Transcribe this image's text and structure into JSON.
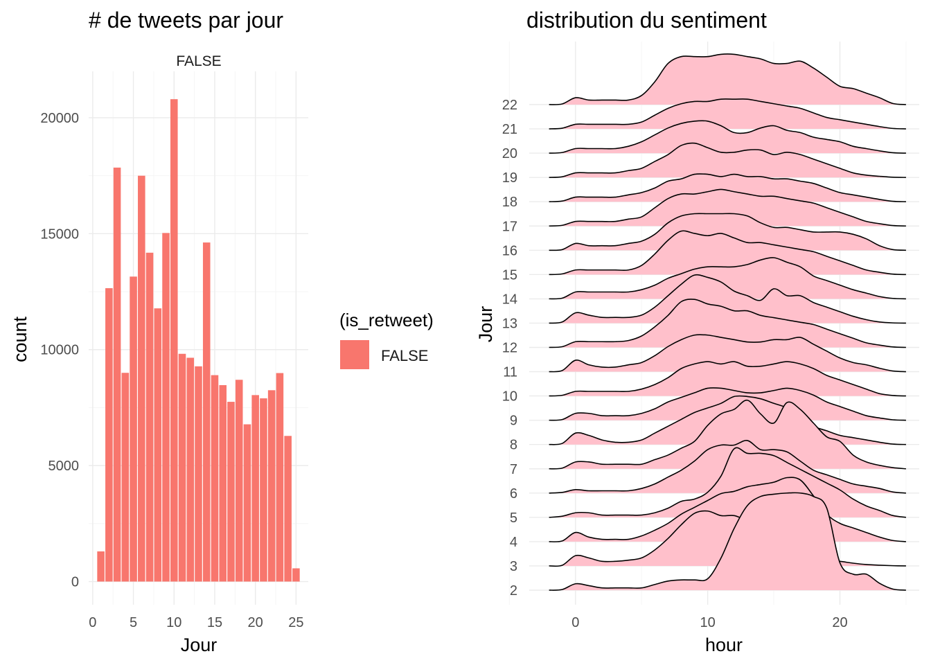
{
  "chart_data": [
    {
      "type": "bar",
      "title": "# de tweets par jour",
      "facet_label": "FALSE",
      "xlabel": "Jour",
      "ylabel": "count",
      "xlim": [
        -0.5,
        26.5
      ],
      "ylim": [
        -1000,
        22000
      ],
      "x_ticks": [
        0,
        5,
        10,
        15,
        20,
        25
      ],
      "y_ticks": [
        0,
        5000,
        10000,
        15000,
        20000
      ],
      "grid": true,
      "legend": {
        "title": "(is_retweet)",
        "position": "right",
        "entries": [
          {
            "label": "FALSE",
            "color": "#f8766d"
          }
        ]
      },
      "color": "#f8766d",
      "x": [
        1,
        2,
        3,
        4,
        5,
        6,
        7,
        8,
        9,
        10,
        11,
        12,
        13,
        14,
        15,
        16,
        17,
        18,
        19,
        20,
        21,
        22,
        23,
        24,
        25
      ],
      "values": [
        1300,
        12650,
        17850,
        9000,
        13150,
        17500,
        14180,
        11780,
        15030,
        20800,
        9820,
        9650,
        9280,
        14620,
        8900,
        8470,
        7750,
        8700,
        6780,
        8040,
        7900,
        8250,
        8990,
        6280,
        570
      ]
    },
    {
      "type": "area",
      "subtype": "ridgeline",
      "title": "distribution du sentiment",
      "xlabel": "hour",
      "ylabel": "Jour",
      "xlim": [
        -3.5,
        26
      ],
      "x_ticks": [
        0,
        10,
        20
      ],
      "categories": [
        "2",
        "3",
        "4",
        "5",
        "6",
        "7",
        "8",
        "9",
        "10",
        "11",
        "12",
        "13",
        "14",
        "15",
        "16",
        "17",
        "18",
        "19",
        "20",
        "21",
        "22"
      ],
      "fill_color": "#ffc0cb",
      "line_color": "#000000",
      "grid": true,
      "x": [
        -2,
        -1,
        0,
        1,
        2,
        3,
        4,
        5,
        6,
        7,
        8,
        9,
        10,
        11,
        12,
        13,
        14,
        15,
        16,
        17,
        18,
        19,
        20,
        21,
        22,
        23,
        24,
        25
      ],
      "series": [
        {
          "values": [
            0.0,
            0.03,
            0.28,
            0.2,
            0.1,
            0.1,
            0.1,
            0.1,
            0.25,
            0.4,
            0.45,
            0.45,
            0.5,
            1.4,
            2.7,
            3.7,
            4.1,
            4.2,
            4.25,
            4.25,
            4.1,
            3.6,
            1.2,
            0.7,
            0.7,
            0.3,
            0.05,
            0.0
          ]
        },
        {
          "values": [
            0.0,
            0.03,
            0.45,
            0.35,
            0.2,
            0.2,
            0.25,
            0.35,
            0.7,
            1.2,
            1.8,
            2.3,
            2.4,
            2.2,
            2.2,
            2.0,
            2.0,
            1.8,
            1.2,
            0.5,
            0.3,
            0.25,
            0.2,
            0.12,
            0.06,
            0.03,
            0.01,
            0.0
          ]
        },
        {
          "values": [
            0.0,
            0.03,
            0.4,
            0.2,
            0.1,
            0.1,
            0.1,
            0.25,
            0.5,
            0.8,
            1.2,
            1.5,
            1.8,
            2.1,
            2.2,
            2.4,
            2.5,
            2.6,
            2.8,
            2.7,
            2.0,
            1.2,
            0.8,
            0.6,
            0.4,
            0.2,
            0.05,
            0.0
          ]
        },
        {
          "values": [
            0.0,
            0.05,
            0.2,
            0.2,
            0.1,
            0.1,
            0.1,
            0.1,
            0.2,
            0.4,
            0.7,
            0.8,
            1.1,
            1.8,
            3.0,
            2.8,
            2.8,
            2.7,
            2.4,
            2.1,
            1.8,
            1.5,
            1.2,
            0.8,
            0.5,
            0.3,
            0.08,
            0.0
          ]
        },
        {
          "values": [
            0.0,
            0.03,
            0.15,
            0.1,
            0.1,
            0.1,
            0.1,
            0.2,
            0.4,
            0.7,
            1.0,
            1.4,
            1.9,
            2.1,
            2.1,
            2.3,
            1.9,
            1.9,
            1.8,
            1.4,
            1.0,
            0.8,
            0.6,
            0.4,
            0.3,
            0.2,
            0.05,
            0.0
          ]
        },
        {
          "values": [
            0.0,
            0.03,
            0.3,
            0.3,
            0.2,
            0.2,
            0.2,
            0.2,
            0.4,
            0.6,
            0.9,
            1.2,
            1.9,
            2.4,
            2.6,
            3.0,
            2.4,
            2.0,
            2.9,
            2.6,
            2.0,
            1.4,
            1.2,
            0.6,
            0.3,
            0.15,
            0.05,
            0.0
          ]
        },
        {
          "values": [
            0.0,
            0.05,
            0.5,
            0.4,
            0.2,
            0.1,
            0.1,
            0.2,
            0.5,
            0.8,
            1.1,
            1.4,
            1.6,
            1.8,
            2.1,
            2.1,
            2.0,
            1.8,
            1.6,
            1.2,
            0.8,
            0.6,
            0.4,
            0.3,
            0.2,
            0.1,
            0.02,
            0.0
          ]
        },
        {
          "values": [
            0.0,
            0.03,
            0.3,
            0.3,
            0.2,
            0.2,
            0.2,
            0.3,
            0.5,
            0.8,
            1.0,
            1.2,
            1.4,
            1.4,
            1.3,
            1.2,
            1.2,
            1.3,
            1.4,
            1.3,
            1.1,
            0.8,
            0.6,
            0.4,
            0.2,
            0.1,
            0.02,
            0.0
          ]
        },
        {
          "values": [
            0.0,
            0.03,
            0.2,
            0.2,
            0.2,
            0.2,
            0.2,
            0.3,
            0.5,
            0.8,
            1.2,
            1.4,
            1.5,
            1.4,
            1.5,
            1.3,
            1.3,
            1.4,
            1.5,
            1.4,
            1.2,
            0.9,
            0.7,
            0.5,
            0.3,
            0.1,
            0.02,
            0.0
          ]
        },
        {
          "values": [
            0.0,
            0.05,
            0.5,
            0.3,
            0.2,
            0.2,
            0.3,
            0.4,
            0.7,
            1.1,
            1.4,
            1.6,
            1.6,
            1.5,
            1.4,
            1.3,
            1.3,
            1.4,
            1.4,
            1.5,
            1.2,
            0.9,
            0.6,
            0.4,
            0.3,
            0.15,
            0.03,
            0.0
          ]
        },
        {
          "values": [
            0.0,
            0.03,
            0.25,
            0.25,
            0.25,
            0.25,
            0.3,
            0.5,
            0.9,
            1.4,
            2.0,
            2.1,
            1.9,
            1.8,
            1.6,
            1.6,
            1.4,
            1.3,
            1.2,
            1.1,
            1.0,
            0.8,
            0.6,
            0.4,
            0.2,
            0.1,
            0.02,
            0.0
          ]
        },
        {
          "values": [
            0.0,
            0.05,
            0.45,
            0.35,
            0.25,
            0.25,
            0.25,
            0.35,
            0.7,
            1.2,
            1.7,
            2.1,
            2.0,
            1.8,
            1.4,
            1.2,
            1.0,
            1.5,
            1.2,
            1.2,
            0.9,
            0.7,
            0.5,
            0.3,
            0.15,
            0.05,
            0.01,
            0.0
          ]
        },
        {
          "values": [
            0.0,
            0.03,
            0.3,
            0.3,
            0.3,
            0.3,
            0.3,
            0.4,
            0.6,
            0.9,
            1.1,
            1.3,
            1.4,
            1.4,
            1.4,
            1.5,
            1.7,
            1.8,
            1.6,
            1.4,
            1.0,
            0.8,
            0.6,
            0.4,
            0.25,
            0.1,
            0.02,
            0.0
          ]
        },
        {
          "values": [
            0.0,
            0.03,
            0.2,
            0.2,
            0.2,
            0.2,
            0.2,
            0.4,
            0.9,
            1.5,
            1.9,
            1.8,
            1.7,
            1.8,
            1.6,
            1.4,
            1.4,
            1.3,
            1.2,
            1.1,
            1.0,
            0.8,
            0.6,
            0.4,
            0.2,
            0.1,
            0.02,
            0.0
          ]
        },
        {
          "values": [
            0.0,
            0.03,
            0.3,
            0.2,
            0.2,
            0.2,
            0.3,
            0.4,
            0.7,
            1.2,
            1.5,
            1.6,
            1.6,
            1.6,
            1.6,
            1.5,
            1.2,
            1.0,
            1.0,
            0.9,
            0.8,
            0.8,
            0.8,
            0.7,
            0.5,
            0.2,
            0.03,
            0.0
          ]
        },
        {
          "values": [
            0.0,
            0.03,
            0.2,
            0.2,
            0.2,
            0.2,
            0.3,
            0.4,
            0.8,
            1.2,
            1.4,
            1.4,
            1.5,
            1.6,
            1.5,
            1.4,
            1.3,
            1.3,
            1.2,
            1.1,
            1.0,
            0.8,
            0.6,
            0.4,
            0.2,
            0.1,
            0.02,
            0.0
          ]
        },
        {
          "values": [
            0.0,
            0.03,
            0.2,
            0.2,
            0.2,
            0.2,
            0.3,
            0.4,
            0.6,
            0.9,
            1.0,
            1.2,
            1.2,
            1.1,
            1.2,
            1.1,
            1.1,
            1.0,
            1.0,
            0.9,
            0.8,
            0.6,
            0.4,
            0.3,
            0.2,
            0.1,
            0.02,
            0.0
          ]
        },
        {
          "values": [
            0.0,
            0.03,
            0.2,
            0.2,
            0.2,
            0.2,
            0.3,
            0.4,
            0.7,
            1.0,
            1.4,
            1.5,
            1.3,
            1.1,
            1.1,
            1.2,
            1.2,
            1.0,
            1.1,
            1.0,
            0.8,
            0.6,
            0.4,
            0.2,
            0.1,
            0.05,
            0.01,
            0.0
          ]
        },
        {
          "values": [
            0.0,
            0.03,
            0.2,
            0.2,
            0.2,
            0.2,
            0.3,
            0.5,
            0.8,
            1.1,
            1.3,
            1.4,
            1.4,
            1.2,
            0.9,
            0.9,
            1.1,
            1.2,
            1.0,
            0.9,
            0.7,
            0.6,
            0.5,
            0.3,
            0.2,
            0.1,
            0.02,
            0.0
          ]
        },
        {
          "values": [
            0.0,
            0.03,
            0.2,
            0.2,
            0.2,
            0.2,
            0.2,
            0.3,
            0.6,
            0.9,
            1.1,
            1.2,
            1.2,
            1.3,
            1.3,
            1.3,
            1.2,
            1.1,
            1.0,
            0.9,
            0.7,
            0.5,
            0.4,
            0.3,
            0.2,
            0.1,
            0.02,
            0.0
          ]
        },
        {
          "values": [
            0.0,
            0.03,
            0.3,
            0.2,
            0.2,
            0.2,
            0.2,
            0.4,
            1.0,
            1.8,
            2.1,
            2.1,
            2.1,
            2.2,
            2.2,
            2.1,
            2.0,
            1.8,
            1.8,
            1.9,
            1.6,
            1.2,
            0.8,
            0.7,
            0.5,
            0.3,
            0.05,
            0.0
          ]
        }
      ]
    }
  ]
}
